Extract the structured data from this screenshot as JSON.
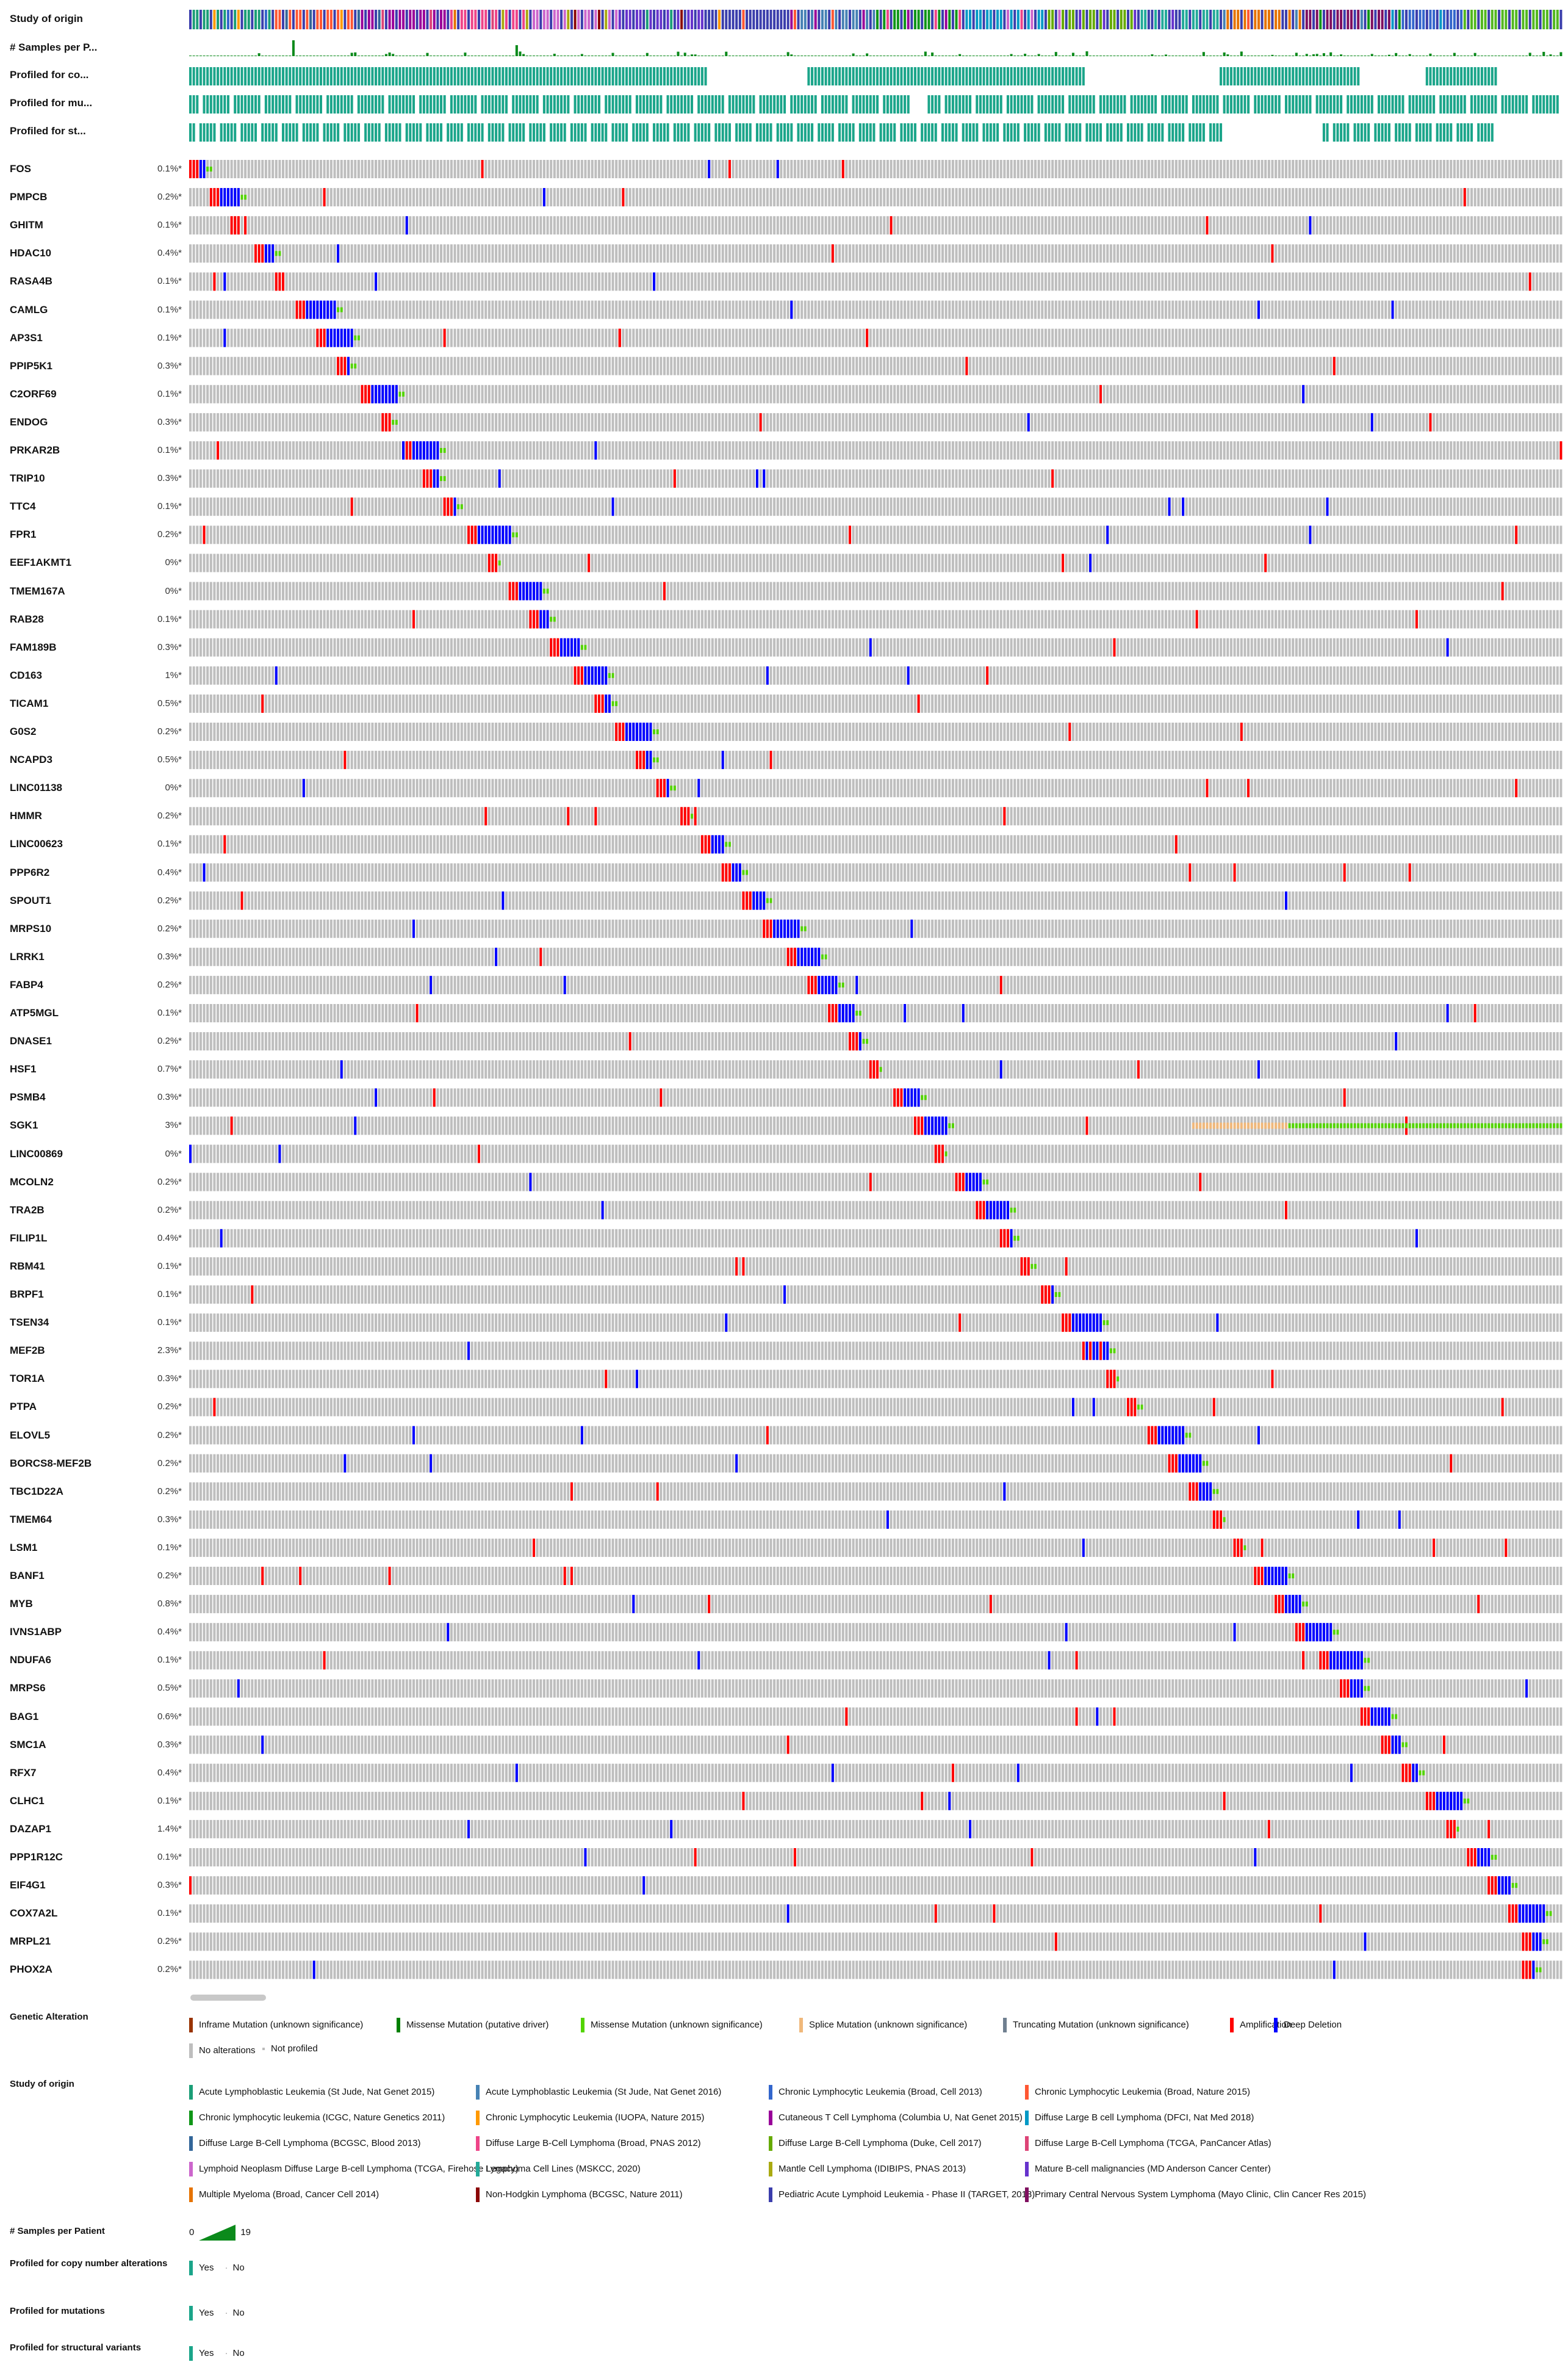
{
  "tracks": {
    "study_of_origin": "Study of origin",
    "samples_per_patient": "# Samples per P...",
    "profiled_cna": "Profiled for co...",
    "profiled_mut": "Profiled for mu...",
    "profiled_sv": "Profiled for st..."
  },
  "genes": [
    {
      "name": "FOS",
      "pct": "0.1%*"
    },
    {
      "name": "PMPCB",
      "pct": "0.2%*"
    },
    {
      "name": "GHITM",
      "pct": "0.1%*"
    },
    {
      "name": "HDAC10",
      "pct": "0.4%*"
    },
    {
      "name": "RASA4B",
      "pct": "0.1%*"
    },
    {
      "name": "CAMLG",
      "pct": "0.1%*"
    },
    {
      "name": "AP3S1",
      "pct": "0.1%*"
    },
    {
      "name": "PPIP5K1",
      "pct": "0.3%*"
    },
    {
      "name": "C2ORF69",
      "pct": "0.1%*"
    },
    {
      "name": "ENDOG",
      "pct": "0.3%*"
    },
    {
      "name": "PRKAR2B",
      "pct": "0.1%*"
    },
    {
      "name": "TRIP10",
      "pct": "0.3%*"
    },
    {
      "name": "TTC4",
      "pct": "0.1%*"
    },
    {
      "name": "FPR1",
      "pct": "0.2%*"
    },
    {
      "name": "EEF1AKMT1",
      "pct": "0%*"
    },
    {
      "name": "TMEM167A",
      "pct": "0%*"
    },
    {
      "name": "RAB28",
      "pct": "0.1%*"
    },
    {
      "name": "FAM189B",
      "pct": "0.3%*"
    },
    {
      "name": "CD163",
      "pct": "1%*"
    },
    {
      "name": "TICAM1",
      "pct": "0.5%*"
    },
    {
      "name": "G0S2",
      "pct": "0.2%*"
    },
    {
      "name": "NCAPD3",
      "pct": "0.5%*"
    },
    {
      "name": "LINC01138",
      "pct": "0%*"
    },
    {
      "name": "HMMR",
      "pct": "0.2%*"
    },
    {
      "name": "LINC00623",
      "pct": "0.1%*"
    },
    {
      "name": "PPP6R2",
      "pct": "0.4%*"
    },
    {
      "name": "SPOUT1",
      "pct": "0.2%*"
    },
    {
      "name": "MRPS10",
      "pct": "0.2%*"
    },
    {
      "name": "LRRK1",
      "pct": "0.3%*"
    },
    {
      "name": "FABP4",
      "pct": "0.2%*"
    },
    {
      "name": "ATP5MGL",
      "pct": "0.1%*"
    },
    {
      "name": "DNASE1",
      "pct": "0.2%*"
    },
    {
      "name": "HSF1",
      "pct": "0.7%*"
    },
    {
      "name": "PSMB4",
      "pct": "0.3%*"
    },
    {
      "name": "SGK1",
      "pct": "3%*"
    },
    {
      "name": "LINC00869",
      "pct": "0%*"
    },
    {
      "name": "MCOLN2",
      "pct": "0.2%*"
    },
    {
      "name": "TRA2B",
      "pct": "0.2%*"
    },
    {
      "name": "FILIP1L",
      "pct": "0.4%*"
    },
    {
      "name": "RBM41",
      "pct": "0.1%*"
    },
    {
      "name": "BRPF1",
      "pct": "0.1%*"
    },
    {
      "name": "TSEN34",
      "pct": "0.1%*"
    },
    {
      "name": "MEF2B",
      "pct": "2.3%*"
    },
    {
      "name": "TOR1A",
      "pct": "0.3%*"
    },
    {
      "name": "PTPA",
      "pct": "0.2%*"
    },
    {
      "name": "ELOVL5",
      "pct": "0.2%*"
    },
    {
      "name": "BORCS8-MEF2B",
      "pct": "0.2%*"
    },
    {
      "name": "TBC1D22A",
      "pct": "0.2%*"
    },
    {
      "name": "TMEM64",
      "pct": "0.3%*"
    },
    {
      "name": "LSM1",
      "pct": "0.1%*"
    },
    {
      "name": "BANF1",
      "pct": "0.2%*"
    },
    {
      "name": "MYB",
      "pct": "0.8%*"
    },
    {
      "name": "IVNS1ABP",
      "pct": "0.4%*"
    },
    {
      "name": "NDUFA6",
      "pct": "0.1%*"
    },
    {
      "name": "MRPS6",
      "pct": "0.5%*"
    },
    {
      "name": "BAG1",
      "pct": "0.6%*"
    },
    {
      "name": "SMC1A",
      "pct": "0.3%*"
    },
    {
      "name": "RFX7",
      "pct": "0.4%*"
    },
    {
      "name": "CLHC1",
      "pct": "0.1%*"
    },
    {
      "name": "DAZAP1",
      "pct": "1.4%*"
    },
    {
      "name": "PPP1R12C",
      "pct": "0.1%*"
    },
    {
      "name": "EIF4G1",
      "pct": "0.3%*"
    },
    {
      "name": "COX7A2L",
      "pct": "0.1%*"
    },
    {
      "name": "MRPL21",
      "pct": "0.2%*"
    },
    {
      "name": "PHOX2A",
      "pct": "0.2%*"
    }
  ],
  "legend": {
    "genetic_alteration": {
      "title": "Genetic Alteration",
      "items": [
        {
          "label": "Inframe Mutation (unknown significance)",
          "color": "#993404"
        },
        {
          "label": "Missense Mutation (putative driver)",
          "color": "#008000"
        },
        {
          "label": "Missense Mutation (unknown significance)",
          "color": "#53d400"
        },
        {
          "label": "Splice Mutation (unknown significance)",
          "color": "#f0b87b"
        },
        {
          "label": "Truncating Mutation (unknown significance)",
          "color": "#708090"
        },
        {
          "label": "Amplification",
          "color": "#ff0000"
        },
        {
          "label": "Deep Deletion",
          "color": "#0000ff"
        },
        {
          "label": "No alterations",
          "color": "#bebebe"
        },
        {
          "label": "Not profiled",
          "color": "#ffffff"
        }
      ]
    },
    "study_of_origin": {
      "title": "Study of origin",
      "items": [
        {
          "label": "Acute Lymphoblastic Leukemia (St Jude, Nat Genet 2015)",
          "color": "#1b9e77"
        },
        {
          "label": "Acute Lymphoblastic Leukemia (St Jude, Nat Genet 2016)",
          "color": "#4682b4"
        },
        {
          "label": "Chronic Lymphocytic Leukemia (Broad, Cell 2013)",
          "color": "#3366cc"
        },
        {
          "label": "Chronic Lymphocytic Leukemia (Broad, Nature 2015)",
          "color": "#ff5733"
        },
        {
          "label": "Chronic lymphocytic leukemia (ICGC, Nature Genetics 2011)",
          "color": "#109618"
        },
        {
          "label": "Chronic Lymphocytic Leukemia (IUOPA, Nature 2015)",
          "color": "#ff9900"
        },
        {
          "label": "Cutaneous T Cell Lymphoma (Columbia U, Nat Genet 2015)",
          "color": "#990099"
        },
        {
          "label": "Diffuse Large B cell Lymphoma (DFCI, Nat Med 2018)",
          "color": "#0099c6"
        },
        {
          "label": "Diffuse Large B-Cell Lymphoma (BCGSC, Blood 2013)",
          "color": "#336699"
        },
        {
          "label": "Diffuse Large B-Cell Lymphoma (Broad, PNAS 2012)",
          "color": "#ee4488"
        },
        {
          "label": "Diffuse Large B-Cell Lymphoma (Duke, Cell 2017)",
          "color": "#66aa00"
        },
        {
          "label": "Diffuse Large B-Cell Lymphoma (TCGA, PanCancer Atlas)",
          "color": "#dd4477"
        },
        {
          "label": "Lymphoid Neoplasm Diffuse Large B-cell Lymphoma (TCGA, Firehose Legacy)",
          "color": "#cc66cc"
        },
        {
          "label": "Lymphoma Cell Lines (MSKCC, 2020)",
          "color": "#22aa99"
        },
        {
          "label": "Mantle Cell Lymphoma (IDIBIPS, PNAS 2013)",
          "color": "#aaaa11"
        },
        {
          "label": "Mature B-cell malignancies (MD Anderson Cancer Center)",
          "color": "#6633cc"
        },
        {
          "label": "Multiple Myeloma (Broad, Cancer Cell 2014)",
          "color": "#e67300"
        },
        {
          "label": "Non-Hodgkin Lymphoma (BCGSC, Nature 2011)",
          "color": "#8b0707"
        },
        {
          "label": "Pediatric Acute Lymphoid Leukemia - Phase II (TARGET, 2018)",
          "color": "#3b3eac"
        },
        {
          "label": "Primary Central Nervous System Lymphoma (Mayo Clinic, Clin Cancer Res 2015)",
          "color": "#7f0f5f"
        }
      ]
    },
    "samples_per_patient": {
      "title": "# Samples per Patient",
      "min": "0",
      "max": "19"
    },
    "profiled_cna": {
      "title": "Profiled for copy number alterations",
      "yes": "Yes",
      "no": "No"
    },
    "profiled_mut": {
      "title": "Profiled for mutations",
      "yes": "Yes",
      "no": "No"
    },
    "profiled_sv": {
      "title": "Profiled for structural variants",
      "yes": "Yes",
      "no": "No"
    }
  },
  "colors": {
    "amplification": "#ff0000",
    "deep_deletion": "#0000ff",
    "missense_unknown": "#53d400",
    "splice": "#f0b87b",
    "truncating": "#708090",
    "no_alteration": "#bebebe",
    "profiled": "#1ba58a"
  }
}
